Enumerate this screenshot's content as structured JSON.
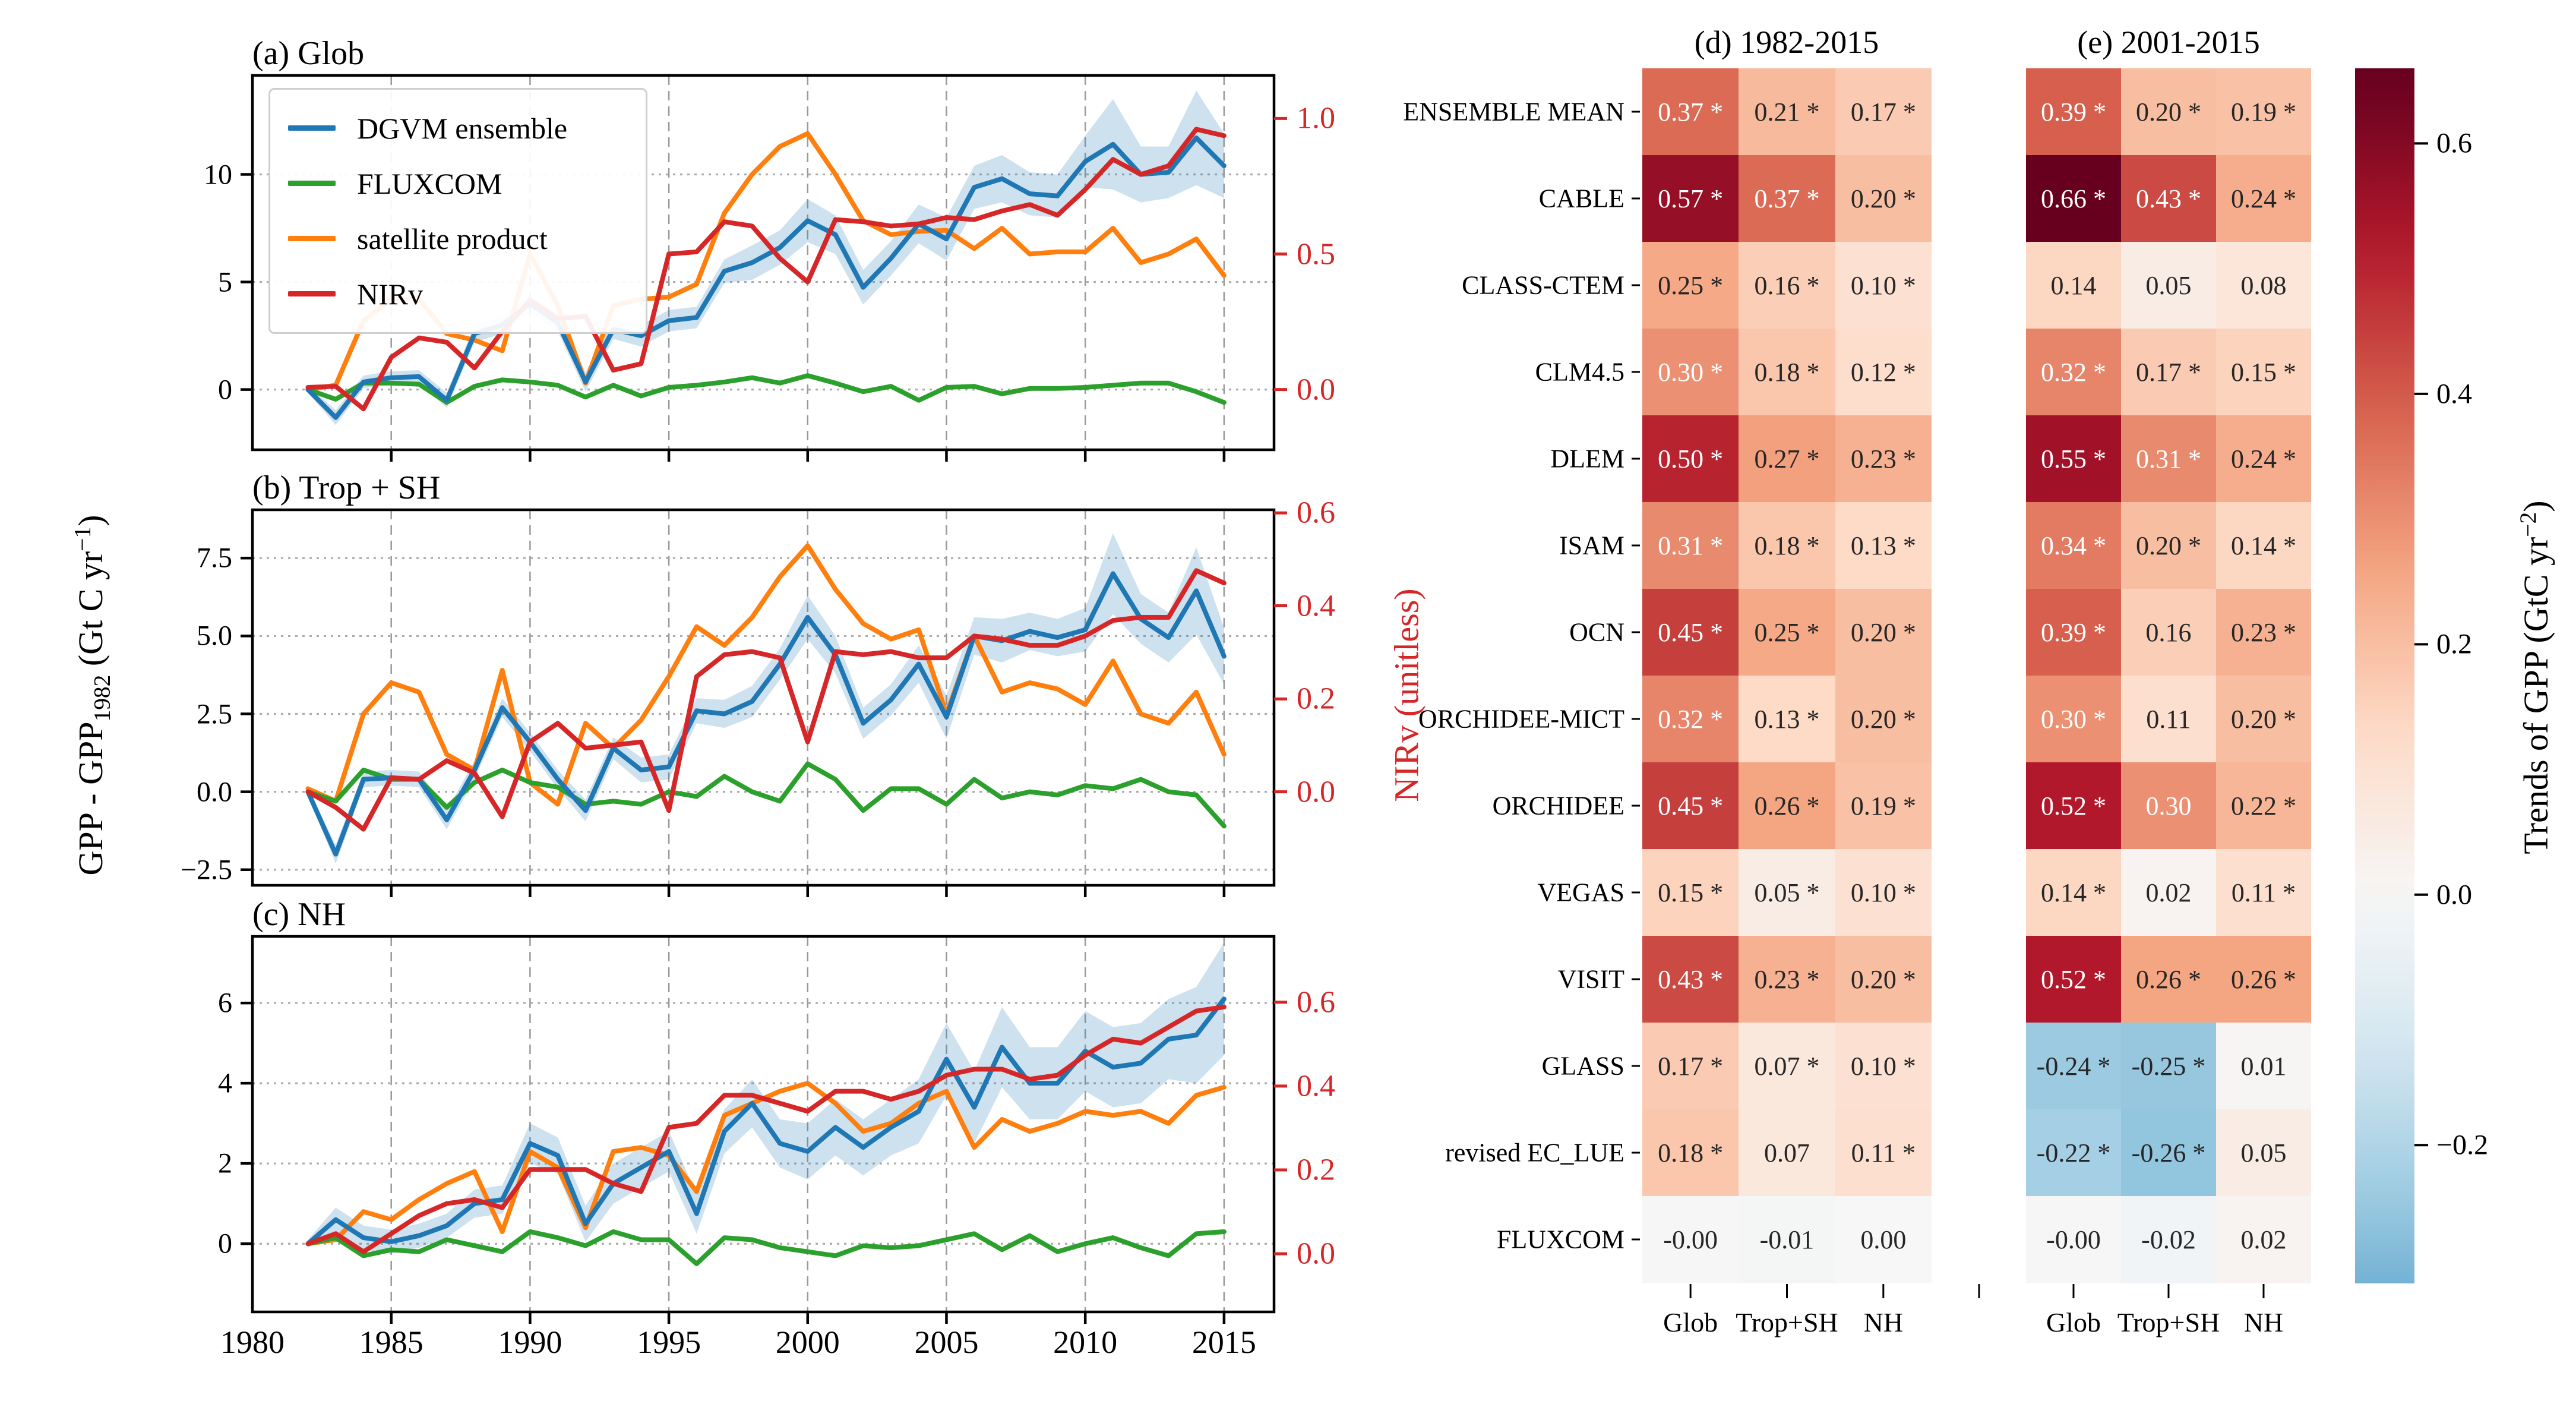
{
  "chart_data": {
    "type": "line+heatmap",
    "x": {
      "years_start": 1982,
      "years_end": 2015,
      "xtick_labels": [
        "1980",
        "1985",
        "1990",
        "1995",
        "2000",
        "2005",
        "2010",
        "2015"
      ],
      "xlim": [
        1980,
        2016.8
      ]
    },
    "legend": {
      "items": [
        {
          "label": "DGVM ensemble",
          "color": "#1f77b4"
        },
        {
          "label": "FLUXCOM",
          "color": "#2ca02c"
        },
        {
          "label": "satellite product",
          "color": "#ff7f0e"
        },
        {
          "label": "NIRv",
          "color": "#d62728"
        }
      ]
    },
    "axis_labels": {
      "left": {
        "pre": "GPP - GPP",
        "sub": "1982",
        "mid": " (Gt C yr",
        "sup": "−1",
        "end": ")"
      },
      "right": "NIRv (unitless)",
      "colorbar": {
        "pre": "Trends of GPP (GtC yr",
        "sup": "−2",
        "end": ")"
      }
    },
    "line_panels": [
      {
        "title": "(a) Glob",
        "ylim": [
          -2.8,
          14.6
        ],
        "yticks": [
          {
            "v": 0,
            "label": "0"
          },
          {
            "v": 5,
            "label": "5"
          },
          {
            "v": 10,
            "label": "10"
          }
        ],
        "right_ticks": [
          {
            "label": "0.0",
            "v": 0.0
          },
          {
            "label": "0.5",
            "v": 6.3
          },
          {
            "label": "1.0",
            "v": 12.6
          }
        ],
        "series": {
          "dgvm": [
            0,
            -1.3,
            0.35,
            0.55,
            0.6,
            -0.5,
            2.6,
            3.0,
            4.0,
            3.1,
            0.35,
            2.8,
            2.5,
            3.2,
            3.35,
            5.5,
            5.9,
            6.6,
            7.85,
            7.2,
            4.75,
            6.1,
            7.7,
            7.0,
            9.4,
            9.8,
            9.1,
            9.0,
            10.6,
            11.4,
            10.0,
            10.1,
            11.7,
            10.4
          ],
          "fluxcom": [
            0,
            -0.45,
            0.3,
            0.3,
            0.25,
            -0.6,
            0.15,
            0.45,
            0.35,
            0.2,
            -0.35,
            0.2,
            -0.3,
            0.1,
            0.2,
            0.35,
            0.55,
            0.3,
            0.65,
            0.3,
            -0.1,
            0.15,
            -0.5,
            0.1,
            0.15,
            -0.2,
            0.05,
            0.05,
            0.1,
            0.2,
            0.3,
            0.3,
            -0.1,
            -0.6
          ],
          "satellite": [
            0,
            0.2,
            3.2,
            4.2,
            4.2,
            2.6,
            2.3,
            1.8,
            6.3,
            3.9,
            0.3,
            3.9,
            4.2,
            4.3,
            4.9,
            8.2,
            10.0,
            11.3,
            11.9,
            10.0,
            7.85,
            7.2,
            7.35,
            7.4,
            6.55,
            7.5,
            6.3,
            6.4,
            6.4,
            7.5,
            5.9,
            6.3,
            7.0,
            5.3
          ],
          "nirv": [
            0.1,
            0.15,
            -0.9,
            1.5,
            2.4,
            2.2,
            1.0,
            2.7,
            4.15,
            3.3,
            3.4,
            0.9,
            1.2,
            6.3,
            6.4,
            7.8,
            7.6,
            6.1,
            5.0,
            7.9,
            7.8,
            7.6,
            7.7,
            8.0,
            7.9,
            8.3,
            8.6,
            8.1,
            9.3,
            10.7,
            10.0,
            10.4,
            12.1,
            11.8
          ],
          "band": [
            0.15,
            0.35,
            0.3,
            0.3,
            0.3,
            0.35,
            0.4,
            0.4,
            0.4,
            0.4,
            0.45,
            0.45,
            0.5,
            0.5,
            0.5,
            0.55,
            0.8,
            0.8,
            1.0,
            0.9,
            0.8,
            0.8,
            0.9,
            1.0,
            1.0,
            1.1,
            1.0,
            1.0,
            1.2,
            2.1,
            1.3,
            1.2,
            2.2,
            1.5
          ]
        }
      },
      {
        "title": "(b) Trop + SH",
        "ylim": [
          -3.0,
          9.05
        ],
        "yticks": [
          {
            "v": -2.5,
            "label": "−2.5"
          },
          {
            "v": 0.0,
            "label": "0.0"
          },
          {
            "v": 2.5,
            "label": "2.5"
          },
          {
            "v": 5.0,
            "label": "5.0"
          },
          {
            "v": 7.5,
            "label": "7.5"
          }
        ],
        "right_ticks": [
          {
            "label": "0.0",
            "v": 0.0
          },
          {
            "label": "0.2",
            "v": 2.98
          },
          {
            "label": "0.4",
            "v": 5.97
          },
          {
            "label": "0.6",
            "v": 8.95
          }
        ],
        "series": {
          "dgvm": [
            0,
            -2.0,
            0.4,
            0.45,
            0.4,
            -0.9,
            0.7,
            2.7,
            1.6,
            0.4,
            -0.6,
            1.4,
            0.7,
            0.8,
            2.6,
            2.5,
            2.9,
            4.1,
            5.6,
            4.4,
            2.2,
            2.95,
            4.1,
            2.4,
            5.0,
            4.85,
            5.15,
            4.95,
            5.2,
            7.0,
            5.55,
            4.95,
            6.45,
            4.35
          ],
          "fluxcom": [
            0,
            -0.3,
            0.7,
            0.4,
            0.4,
            -0.5,
            0.3,
            0.7,
            0.3,
            0.15,
            -0.4,
            -0.3,
            -0.4,
            0.0,
            -0.15,
            0.5,
            0.0,
            -0.3,
            0.9,
            0.4,
            -0.6,
            0.1,
            0.1,
            -0.4,
            0.4,
            -0.2,
            0.0,
            -0.1,
            0.2,
            0.1,
            0.4,
            0.0,
            -0.1,
            -1.1
          ],
          "satellite": [
            0.1,
            -0.3,
            2.5,
            3.5,
            3.2,
            1.2,
            0.7,
            3.9,
            0.3,
            -0.4,
            2.2,
            1.4,
            2.3,
            3.7,
            5.3,
            4.7,
            5.6,
            6.9,
            7.9,
            6.5,
            5.4,
            4.9,
            5.2,
            2.5,
            5.0,
            3.2,
            3.5,
            3.3,
            2.8,
            4.2,
            2.5,
            2.2,
            3.2,
            1.2
          ],
          "nirv": [
            0,
            -0.5,
            -1.2,
            0.45,
            0.4,
            1.0,
            0.6,
            -0.8,
            1.6,
            2.2,
            1.4,
            1.5,
            1.6,
            -0.6,
            3.7,
            4.4,
            4.5,
            4.3,
            1.6,
            4.5,
            4.4,
            4.5,
            4.3,
            4.3,
            5.0,
            4.9,
            4.7,
            4.7,
            5.0,
            5.5,
            5.6,
            5.6,
            7.1,
            6.7
          ],
          "band": [
            0.1,
            0.3,
            0.25,
            0.25,
            0.25,
            0.3,
            0.3,
            0.3,
            0.3,
            0.3,
            0.35,
            0.35,
            0.4,
            0.4,
            0.4,
            0.45,
            0.5,
            0.5,
            0.7,
            0.6,
            0.5,
            0.5,
            0.6,
            0.7,
            0.6,
            0.7,
            0.6,
            0.6,
            0.7,
            1.3,
            0.8,
            0.8,
            1.4,
            0.9
          ]
        }
      },
      {
        "title": "(c) NH",
        "ylim": [
          -1.7,
          7.66
        ],
        "yticks": [
          {
            "v": 0,
            "label": "0"
          },
          {
            "v": 2,
            "label": "2"
          },
          {
            "v": 4,
            "label": "4"
          },
          {
            "v": 6,
            "label": "6"
          }
        ],
        "right_ticks": [
          {
            "label": "0.0",
            "v": -0.25
          },
          {
            "label": "0.2",
            "v": 1.84
          },
          {
            "label": "0.4",
            "v": 3.93
          },
          {
            "label": "0.6",
            "v": 6.02
          }
        ],
        "series": {
          "dgvm": [
            0,
            0.6,
            0.15,
            0.05,
            0.2,
            0.45,
            1.0,
            1.1,
            2.5,
            2.2,
            0.5,
            1.5,
            1.9,
            2.3,
            0.75,
            2.8,
            3.5,
            2.5,
            2.3,
            2.9,
            2.4,
            2.9,
            3.3,
            4.6,
            3.4,
            4.9,
            4.0,
            4.0,
            4.8,
            4.4,
            4.5,
            5.1,
            5.2,
            6.1
          ],
          "fluxcom": [
            0,
            0.15,
            -0.3,
            -0.15,
            -0.2,
            0.1,
            -0.05,
            -0.2,
            0.3,
            0.15,
            -0.05,
            0.3,
            0.1,
            0.1,
            -0.5,
            0.15,
            0.1,
            -0.1,
            -0.2,
            -0.3,
            -0.05,
            -0.1,
            -0.05,
            0.1,
            0.25,
            -0.15,
            0.2,
            -0.2,
            0.0,
            0.15,
            -0.1,
            -0.3,
            0.25,
            0.3
          ],
          "satellite": [
            0,
            0.1,
            0.8,
            0.6,
            1.1,
            1.5,
            1.8,
            0.3,
            2.3,
            1.9,
            0.4,
            2.3,
            2.4,
            2.2,
            1.3,
            3.2,
            3.5,
            3.8,
            4.0,
            3.5,
            2.8,
            3.0,
            3.5,
            3.8,
            2.4,
            3.1,
            2.8,
            3.0,
            3.3,
            3.2,
            3.3,
            3.0,
            3.7,
            3.9
          ],
          "nirv": [
            0,
            0.25,
            -0.2,
            0.25,
            0.7,
            1.0,
            1.1,
            0.9,
            1.85,
            1.85,
            1.85,
            1.5,
            1.3,
            2.9,
            3.0,
            3.7,
            3.7,
            3.5,
            3.3,
            3.8,
            3.8,
            3.6,
            3.8,
            4.2,
            4.35,
            4.35,
            4.1,
            4.2,
            4.7,
            5.1,
            5.0,
            5.4,
            5.8,
            5.9
          ],
          "band": [
            0.1,
            0.3,
            0.3,
            0.3,
            0.3,
            0.3,
            0.35,
            0.35,
            0.5,
            0.45,
            0.45,
            0.5,
            0.5,
            0.5,
            0.5,
            0.55,
            0.6,
            0.6,
            0.7,
            0.7,
            0.7,
            0.7,
            0.8,
            0.9,
            0.9,
            1.0,
            0.9,
            0.9,
            1.0,
            1.0,
            1.0,
            1.0,
            1.2,
            1.4
          ]
        }
      }
    ],
    "heatmaps": {
      "row_labels": [
        "ENSEMBLE MEAN",
        "CABLE",
        "CLASS-CTEM",
        "CLM4.5",
        "DLEM",
        "ISAM",
        "OCN",
        "ORCHIDEE-MICT",
        "ORCHIDEE",
        "VEGAS",
        "VISIT",
        "GLASS",
        "revised EC_LUE",
        "FLUXCOM"
      ],
      "col_labels": [
        "Glob",
        "Trop+SH",
        "NH"
      ],
      "maps": [
        {
          "title": "(d) 1982-2015",
          "values": [
            [
              0.37,
              0.21,
              0.17
            ],
            [
              0.57,
              0.37,
              0.2
            ],
            [
              0.25,
              0.16,
              0.1
            ],
            [
              0.3,
              0.18,
              0.12
            ],
            [
              0.5,
              0.27,
              0.23
            ],
            [
              0.31,
              0.18,
              0.13
            ],
            [
              0.45,
              0.25,
              0.2
            ],
            [
              0.32,
              0.13,
              0.2
            ],
            [
              0.45,
              0.26,
              0.19
            ],
            [
              0.15,
              0.05,
              0.1
            ],
            [
              0.43,
              0.23,
              0.2
            ],
            [
              0.17,
              0.07,
              0.1
            ],
            [
              0.18,
              0.07,
              0.11
            ],
            [
              -0.004,
              -0.01,
              0.001
            ]
          ],
          "labels": [
            [
              "0.37 *",
              "0.21 *",
              "0.17 *"
            ],
            [
              "0.57 *",
              "0.37 *",
              "0.20 *"
            ],
            [
              "0.25 *",
              "0.16 *",
              "0.10 *"
            ],
            [
              "0.30 *",
              "0.18 *",
              "0.12 *"
            ],
            [
              "0.50 *",
              "0.27 *",
              "0.23 *"
            ],
            [
              "0.31 *",
              "0.18 *",
              "0.13 *"
            ],
            [
              "0.45 *",
              "0.25 *",
              "0.20 *"
            ],
            [
              "0.32 *",
              "0.13 *",
              "0.20 *"
            ],
            [
              "0.45 *",
              "0.26 *",
              "0.19 *"
            ],
            [
              "0.15 *",
              "0.05 *",
              "0.10 *"
            ],
            [
              "0.43 *",
              "0.23 *",
              "0.20 *"
            ],
            [
              "0.17 *",
              "0.07 *",
              "0.10 *"
            ],
            [
              "0.18 *",
              "0.07",
              "0.11 *"
            ],
            [
              "-0.00",
              "-0.01",
              "0.00"
            ]
          ]
        },
        {
          "title": "(e) 2001-2015",
          "values": [
            [
              0.39,
              0.2,
              0.19
            ],
            [
              0.66,
              0.43,
              0.24
            ],
            [
              0.14,
              0.05,
              0.08
            ],
            [
              0.32,
              0.17,
              0.15
            ],
            [
              0.55,
              0.31,
              0.24
            ],
            [
              0.34,
              0.2,
              0.14
            ],
            [
              0.39,
              0.16,
              0.23
            ],
            [
              0.3,
              0.11,
              0.2
            ],
            [
              0.52,
              0.3,
              0.22
            ],
            [
              0.14,
              0.02,
              0.11
            ],
            [
              0.52,
              0.26,
              0.26
            ],
            [
              -0.24,
              -0.25,
              0.01
            ],
            [
              -0.22,
              -0.26,
              0.05
            ],
            [
              -0.004,
              -0.02,
              0.02
            ]
          ],
          "labels": [
            [
              "0.39 *",
              "0.20 *",
              "0.19 *"
            ],
            [
              "0.66 *",
              "0.43 *",
              "0.24 *"
            ],
            [
              "0.14",
              "0.05",
              "0.08"
            ],
            [
              "0.32 *",
              "0.17 *",
              "0.15 *"
            ],
            [
              "0.55 *",
              "0.31 *",
              "0.24 *"
            ],
            [
              "0.34 *",
              "0.20 *",
              "0.14 *"
            ],
            [
              "0.39 *",
              "0.16",
              "0.23 *"
            ],
            [
              "0.30 *",
              "0.11",
              "0.20 *"
            ],
            [
              "0.52 *",
              "0.30",
              "0.22 *"
            ],
            [
              "0.14 *",
              "0.02",
              "0.11 *"
            ],
            [
              "0.52 *",
              "0.26 *",
              "0.26 *"
            ],
            [
              "-0.24 *",
              "-0.25 *",
              "0.01"
            ],
            [
              "-0.22 *",
              "-0.26 *",
              "0.05"
            ],
            [
              "-0.00",
              "-0.02",
              "0.02"
            ]
          ]
        }
      ]
    },
    "colorbar": {
      "ticks": [
        {
          "label": "0.6",
          "v": 0.6
        },
        {
          "label": "0.4",
          "v": 0.4
        },
        {
          "label": "0.2",
          "v": 0.2
        },
        {
          "label": "0.0",
          "v": 0.0
        },
        {
          "label": "−0.2",
          "v": -0.2
        }
      ],
      "display_range": [
        0.66,
        -0.31
      ],
      "cmap_range": [
        -0.65,
        0.65
      ]
    }
  }
}
